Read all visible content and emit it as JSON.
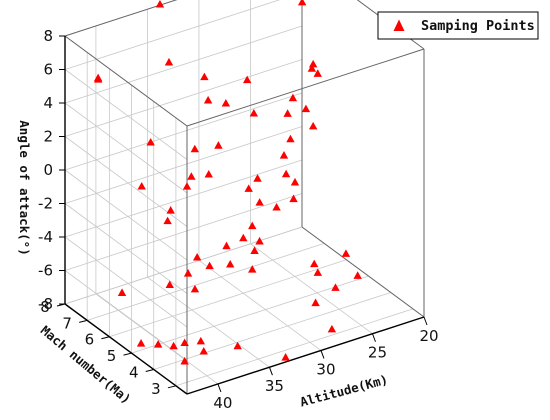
{
  "chart_data": {
    "type": "scatter3d",
    "legend": {
      "label": "Samping Points",
      "marker": "triangle",
      "color": "#ff0000"
    },
    "grid": true,
    "x_axis": {
      "label": "Altitude(Km)",
      "range": [
        20,
        43
      ],
      "ticks": [
        "20",
        "25",
        "30",
        "35",
        "40"
      ]
    },
    "y_axis": {
      "label": "Mach number(Ma)",
      "range": [
        2.5,
        8
      ],
      "ticks": [
        "3",
        "4",
        "5",
        "6",
        "7",
        "8"
      ]
    },
    "z_axis": {
      "label": "Angle of attack(°)",
      "range": [
        -8,
        8
      ],
      "ticks": [
        "-8",
        "-6",
        "-4",
        "-2",
        "0",
        "2",
        "4",
        "6",
        "8"
      ]
    },
    "points": [
      {
        "alt": 23.0,
        "mach": 6.6,
        "aoa": 7.4
      },
      {
        "alt": 41.5,
        "mach": 7.2,
        "aoa": 5.9
      },
      {
        "alt": 40.0,
        "mach": 7.9,
        "aoa": 5.0
      },
      {
        "alt": 34.0,
        "mach": 7.9,
        "aoa": 8.2
      },
      {
        "alt": 33.5,
        "mach": 4.2,
        "aoa": 7.2
      },
      {
        "alt": 37.0,
        "mach": 6.1,
        "aoa": 7.1
      },
      {
        "alt": 35.5,
        "mach": 5.2,
        "aoa": 6.8
      },
      {
        "alt": 31.0,
        "mach": 3.3,
        "aoa": 6.5
      },
      {
        "alt": 36.0,
        "mach": 4.0,
        "aoa": 6.5
      },
      {
        "alt": 36.0,
        "mach": 4.8,
        "aoa": 5.9
      },
      {
        "alt": 33.5,
        "mach": 3.9,
        "aoa": 5.5
      },
      {
        "alt": 25.5,
        "mach": 5.0,
        "aoa": 5.5
      },
      {
        "alt": 24.5,
        "mach": 5.2,
        "aoa": 4.8
      },
      {
        "alt": 41.5,
        "mach": 3.0,
        "aoa": 4.2
      },
      {
        "alt": 43.0,
        "mach": 2.5,
        "aoa": 4.4
      },
      {
        "alt": 40.5,
        "mach": 5.3,
        "aoa": 3.8
      },
      {
        "alt": 28.5,
        "mach": 4.7,
        "aoa": 3.7
      },
      {
        "alt": 35.0,
        "mach": 4.8,
        "aoa": 3.0
      },
      {
        "alt": 36.0,
        "mach": 5.4,
        "aoa": 2.4
      },
      {
        "alt": 34.0,
        "mach": 3.5,
        "aoa": 2.1
      },
      {
        "alt": 25.0,
        "mach": 5.5,
        "aoa": 2.5
      },
      {
        "alt": 21.5,
        "mach": 6.8,
        "aoa": 3.2
      },
      {
        "alt": 42.0,
        "mach": 3.7,
        "aoa": 1.6
      },
      {
        "alt": 34.0,
        "mach": 3.9,
        "aoa": 1.1
      },
      {
        "alt": 26.5,
        "mach": 5.5,
        "aoa": 1.0
      },
      {
        "alt": 29.5,
        "mach": 4.4,
        "aoa": 1.7
      },
      {
        "alt": 34.0,
        "mach": 5.7,
        "aoa": 0.2
      },
      {
        "alt": 28.0,
        "mach": 5.0,
        "aoa": -0.3
      },
      {
        "alt": 28.0,
        "mach": 4.6,
        "aoa": -0.4
      },
      {
        "alt": 21.5,
        "mach": 6.8,
        "aoa": -0.5
      },
      {
        "alt": 29.0,
        "mach": 4.2,
        "aoa": -0.8
      },
      {
        "alt": 39.0,
        "mach": 6.4,
        "aoa": -0.2
      },
      {
        "alt": 39.5,
        "mach": 5.0,
        "aoa": -0.8
      },
      {
        "alt": 39.0,
        "mach": 3.9,
        "aoa": -2.0
      },
      {
        "alt": 31.0,
        "mach": 4.8,
        "aoa": -1.2
      },
      {
        "alt": 30.0,
        "mach": 4.5,
        "aoa": -1.4
      },
      {
        "alt": 31.5,
        "mach": 4.9,
        "aoa": -2.6
      },
      {
        "alt": 34.0,
        "mach": 4.9,
        "aoa": -3.3
      },
      {
        "alt": 36.5,
        "mach": 4.5,
        "aoa": -3.6
      },
      {
        "alt": 33.0,
        "mach": 4.1,
        "aoa": -3.0
      },
      {
        "alt": 34.5,
        "mach": 4.5,
        "aoa": -3.9
      },
      {
        "alt": 45.0,
        "mach": 4.5,
        "aoa": -3.5
      },
      {
        "alt": 26.5,
        "mach": 3.0,
        "aoa": -3.4
      },
      {
        "alt": 28.5,
        "mach": 3.5,
        "aoa": -4.1
      },
      {
        "alt": 29.5,
        "mach": 5.5,
        "aoa": -4.5
      },
      {
        "alt": 30.0,
        "mach": 6.0,
        "aoa": -4.7
      },
      {
        "alt": 38.0,
        "mach": 5.6,
        "aoa": -5.5
      },
      {
        "alt": 24.5,
        "mach": 3.4,
        "aoa": -5.5
      },
      {
        "alt": 26.0,
        "mach": 4.5,
        "aoa": -6.1
      },
      {
        "alt": 34.5,
        "mach": 6.4,
        "aoa": -6.3
      },
      {
        "alt": 40.0,
        "mach": 4.0,
        "aoa": -7.0
      },
      {
        "alt": 38.0,
        "mach": 4.2,
        "aoa": -7.5
      },
      {
        "alt": 24.5,
        "mach": 4.4,
        "aoa": -7.2
      },
      {
        "alt": 33.0,
        "mach": 2.7,
        "aoa": -8.0
      },
      {
        "alt": 26.0,
        "mach": 4.6,
        "aoa": -8.0
      },
      {
        "alt": 27.0,
        "mach": 3.4,
        "aoa": -8.2
      },
      {
        "alt": 41.0,
        "mach": 5.5,
        "aoa": -8.3
      },
      {
        "alt": 37.5,
        "mach": 4.3,
        "aoa": -8.3
      },
      {
        "alt": 40.0,
        "mach": 4.0,
        "aoa": -8.1
      },
      {
        "alt": 35.5,
        "mach": 3.7,
        "aoa": -7.8
      },
      {
        "alt": 41.5,
        "mach": 3.8,
        "aoa": -6.7
      },
      {
        "alt": 43.0,
        "mach": 3.8,
        "aoa": -6.3
      },
      {
        "alt": 39.0,
        "mach": 4.0,
        "aoa": -4.0
      },
      {
        "alt": 31.5,
        "mach": 4.9,
        "aoa": -5.2
      }
    ]
  }
}
